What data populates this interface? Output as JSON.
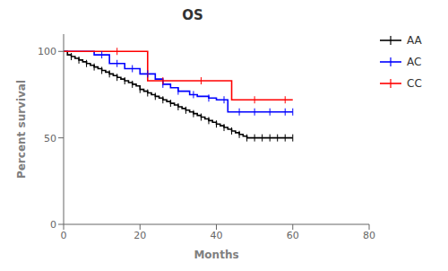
{
  "chart_data": {
    "type": "line",
    "title": "OS",
    "xlabel": "Months",
    "ylabel": "Percent survival",
    "xlim": [
      0,
      80
    ],
    "ylim": [
      0,
      110
    ],
    "xticks": [
      0,
      20,
      40,
      60,
      80
    ],
    "yticks": [
      0,
      50,
      100
    ],
    "grid": false,
    "legend": "upper right",
    "line_style": "step",
    "series": [
      {
        "name": "AA",
        "color": "#000000",
        "marker": "|",
        "x": [
          0,
          1,
          2,
          3,
          4,
          5,
          6,
          7,
          8,
          9,
          10,
          11,
          12,
          13,
          14,
          15,
          16,
          17,
          18,
          19,
          20,
          21,
          22,
          23,
          24,
          25,
          26,
          27,
          28,
          29,
          30,
          31,
          32,
          33,
          34,
          35,
          36,
          37,
          38,
          39,
          40,
          41,
          42,
          43,
          44,
          45,
          46,
          47,
          48,
          60
        ],
        "values": [
          100,
          98,
          97,
          96,
          95,
          94,
          93,
          92,
          91,
          90,
          89,
          88,
          87,
          86,
          85,
          84,
          83,
          82,
          81,
          80,
          78,
          77,
          76,
          75,
          74,
          73,
          72,
          71,
          70,
          69,
          68,
          67,
          66,
          65,
          64,
          63,
          62,
          61,
          60,
          59,
          58,
          57,
          56,
          55,
          54,
          53,
          52,
          51,
          50,
          50
        ],
        "censored": {
          "x": [
            2,
            4,
            6,
            8,
            10,
            12,
            14,
            16,
            18,
            20,
            22,
            24,
            26,
            28,
            30,
            32,
            34,
            36,
            38,
            40,
            42,
            44,
            46,
            48,
            50,
            52,
            54,
            56,
            58,
            60
          ],
          "values": [
            97,
            95,
            93,
            91,
            89,
            87,
            85,
            83,
            81,
            78,
            76,
            74,
            72,
            70,
            68,
            66,
            64,
            62,
            60,
            58,
            56,
            54,
            52,
            50,
            50,
            50,
            50,
            50,
            50,
            50
          ]
        }
      },
      {
        "name": "AC",
        "color": "#0000ff",
        "marker": "|",
        "x": [
          0,
          8,
          12,
          16,
          20,
          24,
          26,
          28,
          30,
          33,
          35,
          38,
          40,
          43,
          60
        ],
        "values": [
          100,
          98,
          93,
          90,
          87,
          84,
          81,
          79,
          77,
          75,
          74,
          73,
          72,
          65,
          65
        ],
        "censored": {
          "x": [
            10,
            14,
            18,
            22,
            26,
            30,
            34,
            38,
            42,
            46,
            50,
            54,
            58,
            60
          ],
          "values": [
            98,
            93,
            90,
            87,
            81,
            77,
            75,
            73,
            72,
            65,
            65,
            65,
            65,
            65
          ]
        }
      },
      {
        "name": "CC",
        "color": "#ff0000",
        "marker": "|",
        "x": [
          0,
          10,
          22,
          28,
          44,
          60
        ],
        "values": [
          100,
          100,
          83,
          83,
          72,
          72
        ],
        "censored": {
          "x": [
            14,
            26,
            36,
            50,
            58
          ],
          "values": [
            100,
            83,
            83,
            72,
            72
          ]
        }
      }
    ]
  }
}
